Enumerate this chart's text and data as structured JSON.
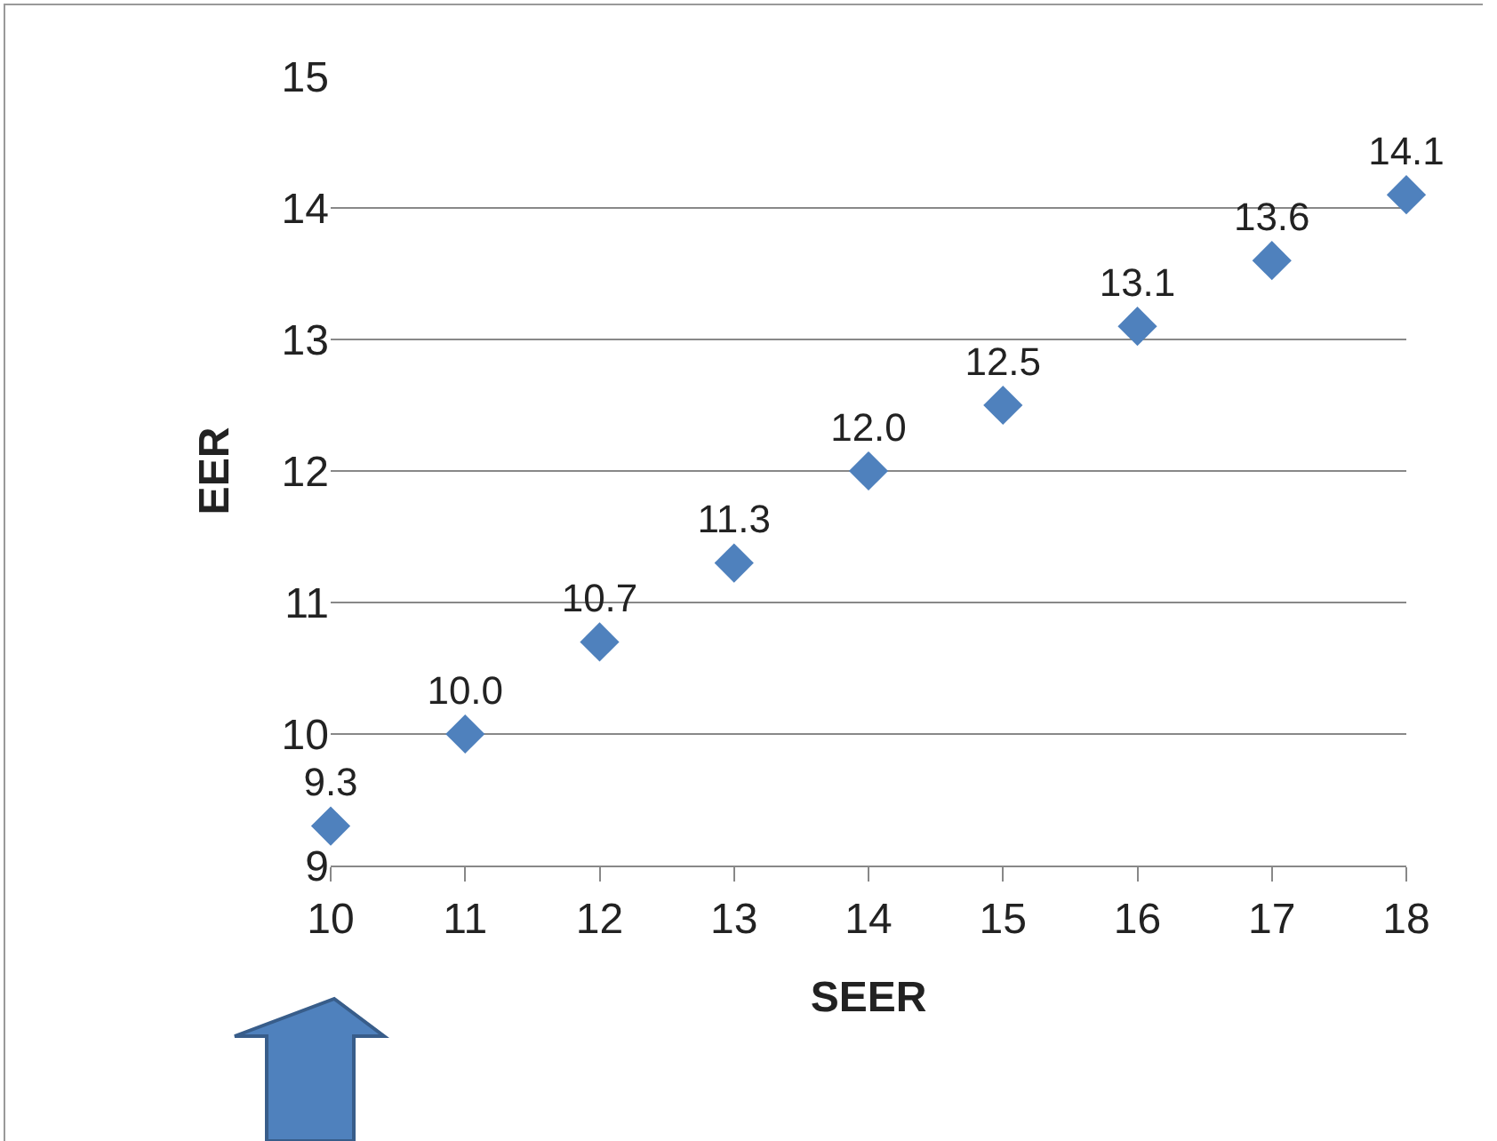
{
  "chart_data": {
    "type": "scatter",
    "xlabel": "SEER",
    "ylabel": "EER",
    "x": [
      10,
      11,
      12,
      13,
      14,
      15,
      16,
      17,
      18
    ],
    "values": [
      9.3,
      10.0,
      10.7,
      11.3,
      12.0,
      12.5,
      13.1,
      13.6,
      14.1
    ],
    "value_labels": [
      "9.3",
      "10.0",
      "10.7",
      "11.3",
      "12.0",
      "12.5",
      "13.1",
      "13.6",
      "14.1"
    ],
    "color": "#4f81bd",
    "marker": "diamond",
    "xlim": [
      10,
      18
    ],
    "xticks": [
      10,
      11,
      12,
      13,
      14,
      15,
      16,
      17,
      18
    ],
    "ylim": [
      9,
      15
    ],
    "yticks": [
      9,
      10,
      11,
      12,
      13,
      14,
      15
    ],
    "grid": "y"
  }
}
